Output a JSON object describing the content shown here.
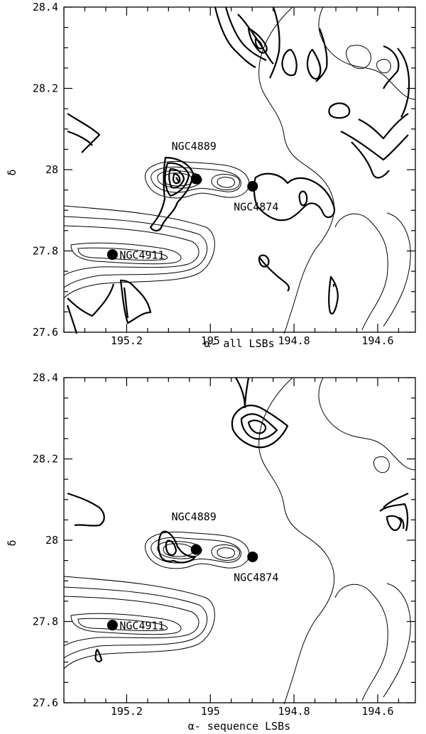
{
  "chart_data": [
    {
      "type": "contour",
      "xlabel": "α- all LSBs",
      "ylabel": "δ",
      "xlim": [
        195.35,
        194.51
      ],
      "ylim": [
        27.6,
        28.4
      ],
      "xticks": [
        195.2,
        195.0,
        194.8,
        194.6
      ],
      "xtick_labels": [
        "195.2",
        "195",
        "194.8",
        "194.6"
      ],
      "yticks": [
        27.6,
        27.8,
        28.0,
        28.2,
        28.4
      ],
      "ytick_labels": [
        "27.6",
        "27.8",
        "28",
        "28.2",
        "28.4"
      ],
      "galaxies": [
        {
          "name": "NGC4889",
          "ra": 195.034,
          "dec": 27.977
        },
        {
          "name": "NGC4874",
          "ra": 194.899,
          "dec": 27.959
        },
        {
          "name": "NGC4911",
          "ra": 195.234,
          "dec": 27.791
        }
      ]
    },
    {
      "type": "contour",
      "xlabel": "α- sequence LSBs",
      "ylabel": "δ",
      "xlim": [
        195.35,
        194.51
      ],
      "ylim": [
        27.6,
        28.4
      ],
      "xticks": [
        195.2,
        195.0,
        194.8,
        194.6
      ],
      "xtick_labels": [
        "195.2",
        "195",
        "194.8",
        "194.6"
      ],
      "yticks": [
        27.6,
        27.8,
        28.0,
        28.2,
        28.4
      ],
      "ytick_labels": [
        "27.6",
        "27.8",
        "28",
        "28.2",
        "28.4"
      ],
      "galaxies": [
        {
          "name": "NGC4889",
          "ra": 195.034,
          "dec": 27.977
        },
        {
          "name": "NGC4874",
          "ra": 194.899,
          "dec": 27.959
        },
        {
          "name": "NGC4911",
          "ra": 195.234,
          "dec": 27.791
        }
      ]
    }
  ]
}
